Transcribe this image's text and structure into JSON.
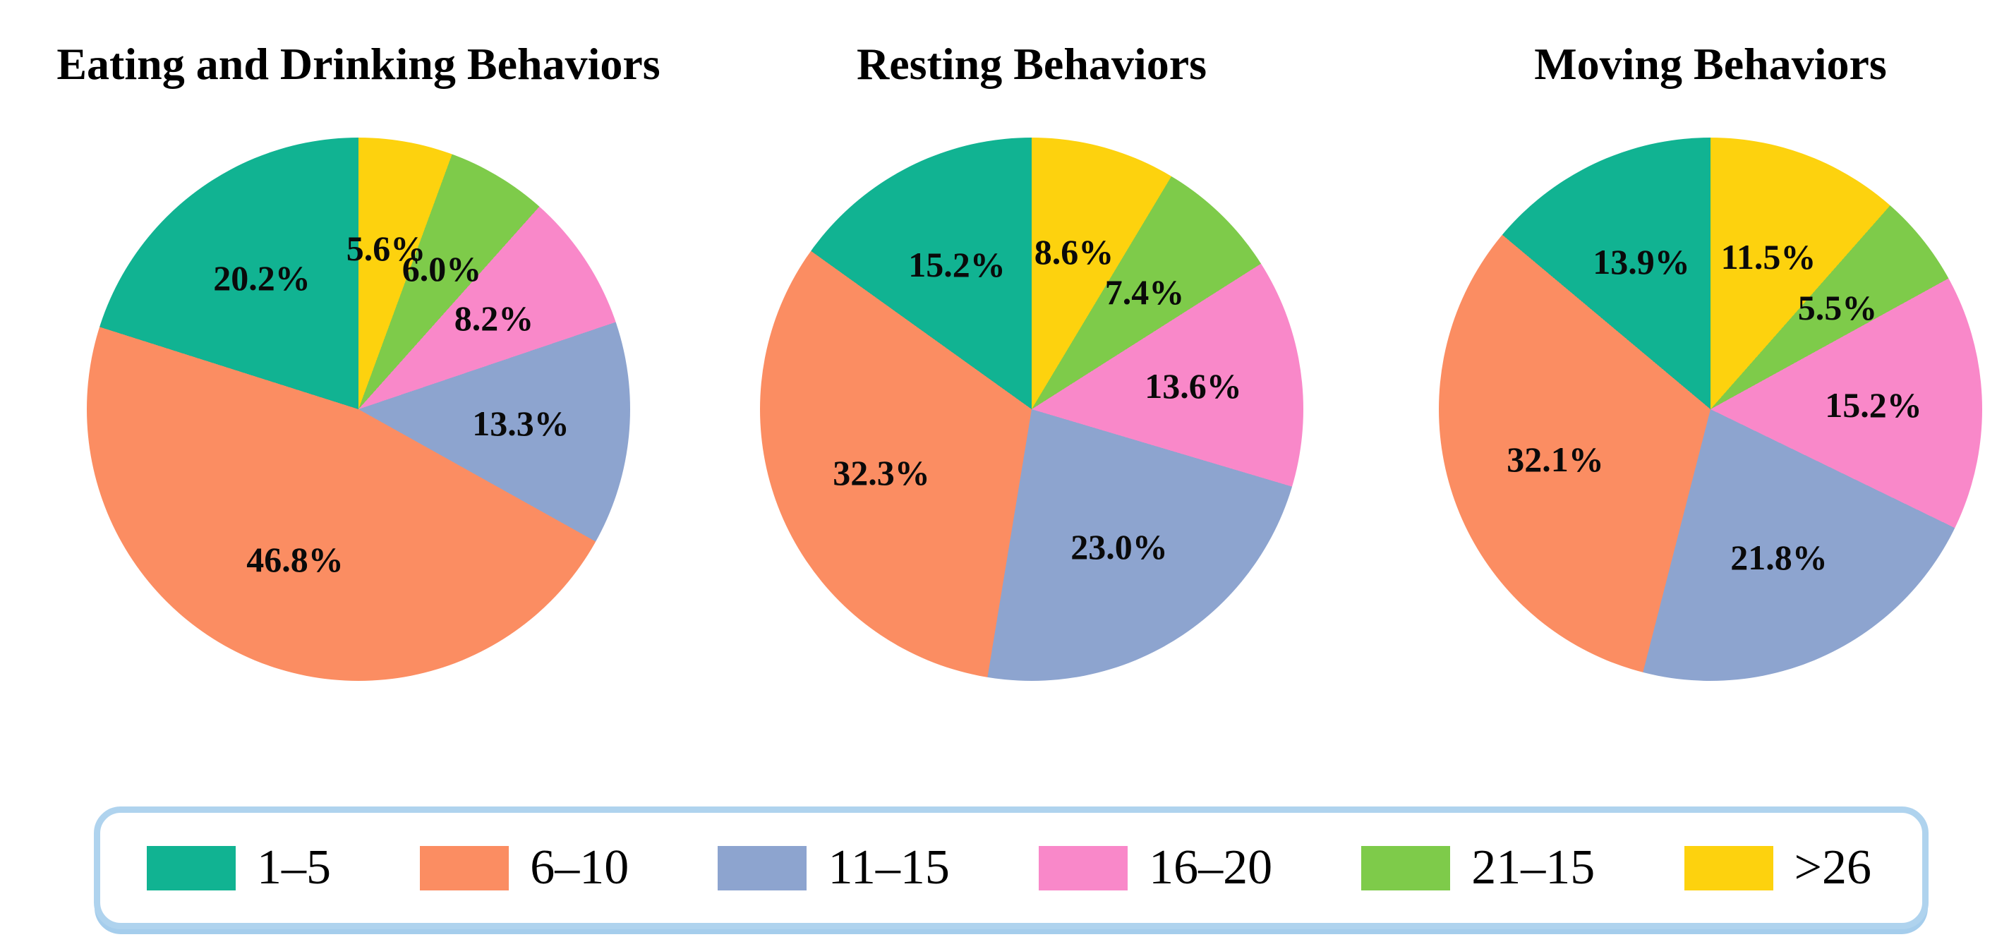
{
  "figure": {
    "background_color": "#ffffff",
    "text_color": "#000000"
  },
  "legend": {
    "position": "bottom",
    "border_color": "#afd3ee",
    "items": [
      {
        "label": "1–5",
        "color": "#11b392"
      },
      {
        "label": "6–10",
        "color": "#fb8d62"
      },
      {
        "label": "11–15",
        "color": "#8da4cf"
      },
      {
        "label": "16–20",
        "color": "#f988c9"
      },
      {
        "label": "21–15",
        "color": "#7ecb4a"
      },
      {
        "label": ">26",
        "color": "#fdd20e"
      }
    ]
  },
  "chart_data": [
    {
      "type": "pie",
      "title": "Eating and Drinking Behaviors",
      "categories": [
        "1–5",
        "6–10",
        "11–15",
        "16–20",
        "21–15",
        ">26"
      ],
      "values": [
        20.2,
        46.8,
        13.3,
        8.2,
        6.0,
        5.6
      ],
      "labels": [
        "20.2%",
        "46.8%",
        "13.3%",
        "8.2%",
        "6.0%",
        "5.6%"
      ],
      "colors": [
        "#11b392",
        "#fb8d62",
        "#8da4cf",
        "#f988c9",
        "#7ecb4a",
        "#fdd20e"
      ],
      "start_angle": 90,
      "direction": "counterclockwise",
      "pct_distance": 0.6,
      "grid": false
    },
    {
      "type": "pie",
      "title": "Resting Behaviors",
      "categories": [
        "1–5",
        "6–10",
        "11–15",
        "16–20",
        "21–15",
        ">26"
      ],
      "values": [
        15.2,
        32.3,
        23.0,
        13.6,
        7.4,
        8.6
      ],
      "labels": [
        "15.2%",
        "32.3%",
        "23.0%",
        "13.6%",
        "7.4%",
        "8.6%"
      ],
      "colors": [
        "#11b392",
        "#fb8d62",
        "#8da4cf",
        "#f988c9",
        "#7ecb4a",
        "#fdd20e"
      ],
      "start_angle": 90,
      "direction": "counterclockwise",
      "pct_distance": 0.6,
      "grid": false
    },
    {
      "type": "pie",
      "title": "Moving Behaviors",
      "categories": [
        "1–5",
        "6–10",
        "11–15",
        "16–20",
        "21–15",
        ">26"
      ],
      "values": [
        13.9,
        32.1,
        21.8,
        15.2,
        5.5,
        11.5
      ],
      "labels": [
        "13.9%",
        "32.1%",
        "21.8%",
        "15.2%",
        "5.5%",
        "11.5%"
      ],
      "colors": [
        "#11b392",
        "#fb8d62",
        "#8da4cf",
        "#f988c9",
        "#7ecb4a",
        "#fdd20e"
      ],
      "start_angle": 90,
      "direction": "counterclockwise",
      "pct_distance": 0.6,
      "grid": false
    }
  ]
}
